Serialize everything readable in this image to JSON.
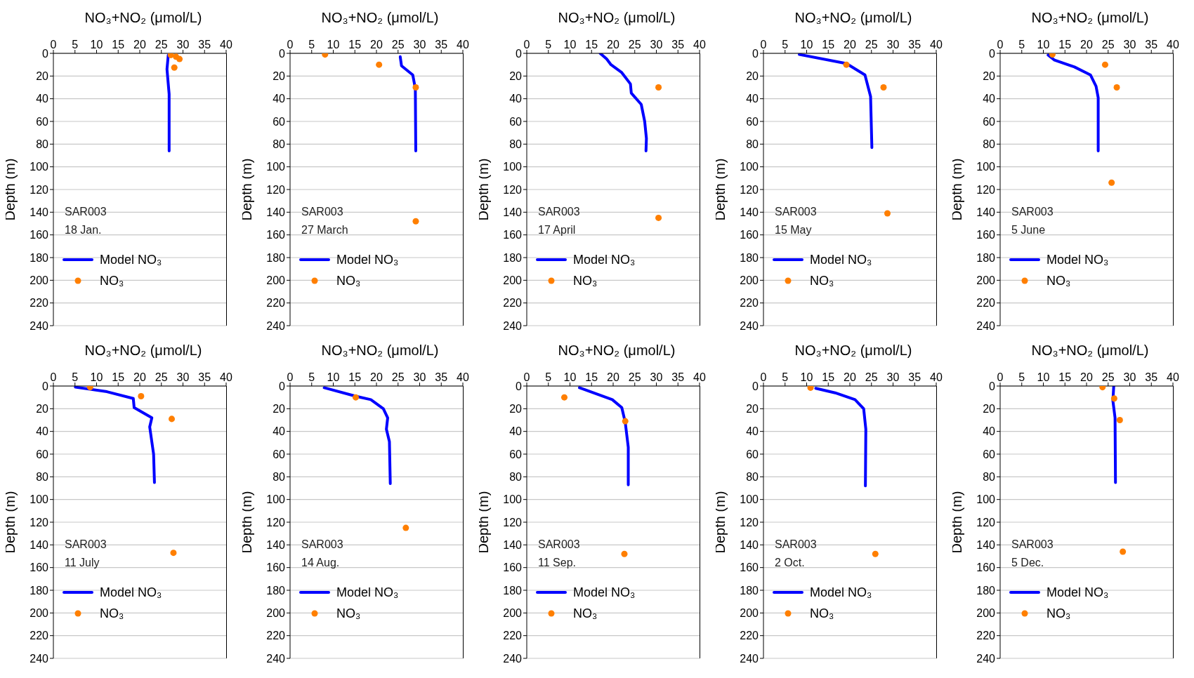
{
  "chart_data": [
    {
      "type": "line",
      "xlabel": "NO₃+NO₂ (μmol/L)",
      "ylabel": "Depth (m)",
      "xlim": [
        0,
        40
      ],
      "xticks": [
        0,
        5,
        10,
        15,
        20,
        25,
        30,
        35,
        40
      ],
      "ylim": [
        240,
        0
      ],
      "yticks": [
        0,
        20,
        40,
        60,
        80,
        100,
        120,
        140,
        160,
        180,
        200,
        220,
        240
      ],
      "grid": "y",
      "legend": "bottom left",
      "annotations": [
        "SAR003",
        "18 Jan."
      ],
      "series": [
        {
          "name": "Model NO₃",
          "type": "line",
          "marker": "none",
          "line_style": "solid",
          "color": "#0000ff",
          "x": [
            26.6,
            26.3,
            26.8,
            26.8
          ],
          "values": [
            1.5,
            14,
            36,
            86
          ]
        },
        {
          "name": "NO₃",
          "type": "scatter",
          "marker": "circle",
          "color": "#ff7f00",
          "x": [
            27.2,
            28.4,
            29.2,
            28
          ],
          "values": [
            1.5,
            3,
            5,
            12.5
          ]
        }
      ]
    },
    {
      "type": "line",
      "xlabel": "NO₃+NO₂ (μmol/L)",
      "ylabel": "Depth (m)",
      "xlim": [
        0,
        40
      ],
      "xticks": [
        0,
        5,
        10,
        15,
        20,
        25,
        30,
        35,
        40
      ],
      "ylim": [
        240,
        0
      ],
      "yticks": [
        0,
        20,
        40,
        60,
        80,
        100,
        120,
        140,
        160,
        180,
        200,
        220,
        240
      ],
      "grid": "y",
      "legend": "bottom left",
      "annotations": [
        "SAR003",
        "27 March"
      ],
      "series": [
        {
          "name": "Model NO₃",
          "type": "line",
          "marker": "none",
          "line_style": "solid",
          "color": "#0000ff",
          "x": [
            25.5,
            25.8,
            28.4,
            29,
            29.1
          ],
          "values": [
            3,
            11,
            19,
            31,
            86
          ]
        },
        {
          "name": "NO₃",
          "type": "scatter",
          "marker": "circle",
          "color": "#ff7f00",
          "x": [
            8.1,
            20.6,
            29.1,
            29.1
          ],
          "values": [
            1,
            10,
            30,
            148
          ]
        }
      ]
    },
    {
      "type": "line",
      "xlabel": "NO₃+NO₂ (μmol/L)",
      "ylabel": "Depth (m)",
      "xlim": [
        0,
        40
      ],
      "xticks": [
        0,
        5,
        10,
        15,
        20,
        25,
        30,
        35,
        40
      ],
      "ylim": [
        240,
        0
      ],
      "yticks": [
        0,
        20,
        40,
        60,
        80,
        100,
        120,
        140,
        160,
        180,
        200,
        220,
        240
      ],
      "grid": "y",
      "legend": "bottom left",
      "annotations": [
        "SAR003",
        "17 April"
      ],
      "series": [
        {
          "name": "Model NO₃",
          "type": "line",
          "marker": "none",
          "line_style": "solid",
          "color": "#0000ff",
          "x": [
            17,
            18.5,
            19.5,
            22,
            24,
            24.2,
            26.5,
            27.3,
            27.7,
            27.6
          ],
          "values": [
            0,
            5,
            10,
            17,
            27,
            35,
            45,
            60,
            75,
            86
          ]
        },
        {
          "name": "NO₃",
          "type": "scatter",
          "marker": "circle",
          "color": "#ff7f00",
          "x": [
            30.5,
            30.5
          ],
          "values": [
            30,
            145
          ]
        }
      ]
    },
    {
      "type": "line",
      "xlabel": "NO₃+NO₂ (μmol/L)",
      "ylabel": "Depth (m)",
      "xlim": [
        0,
        40
      ],
      "xticks": [
        0,
        5,
        10,
        15,
        20,
        25,
        30,
        35,
        40
      ],
      "ylim": [
        240,
        0
      ],
      "yticks": [
        0,
        20,
        40,
        60,
        80,
        100,
        120,
        140,
        160,
        180,
        200,
        220,
        240
      ],
      "grid": "y",
      "legend": "bottom left",
      "annotations": [
        "SAR003",
        "15 May"
      ],
      "series": [
        {
          "name": "Model NO₃",
          "type": "line",
          "marker": "none",
          "line_style": "solid",
          "color": "#0000ff",
          "x": [
            8.3,
            19.2,
            23.5,
            24.8,
            25.1
          ],
          "values": [
            1,
            9,
            19,
            38,
            83
          ]
        },
        {
          "name": "NO₃",
          "type": "scatter",
          "marker": "circle",
          "color": "#ff7f00",
          "x": [
            19.2,
            27.8,
            28.7
          ],
          "values": [
            10,
            30,
            141
          ]
        }
      ]
    },
    {
      "type": "line",
      "xlabel": "NO₃+NO₂ (μmol/L)",
      "ylabel": "Depth (m)",
      "xlim": [
        0,
        40
      ],
      "xticks": [
        0,
        5,
        10,
        15,
        20,
        25,
        30,
        35,
        40
      ],
      "ylim": [
        240,
        0
      ],
      "yticks": [
        0,
        20,
        40,
        60,
        80,
        100,
        120,
        140,
        160,
        180,
        200,
        220,
        240
      ],
      "grid": "y",
      "legend": "bottom left",
      "annotations": [
        "SAR003",
        "5 June"
      ],
      "series": [
        {
          "name": "Model NO₃",
          "type": "line",
          "marker": "none",
          "line_style": "solid",
          "color": "#0000ff",
          "x": [
            11.1,
            12.6,
            17.2,
            20.9,
            22.2,
            22.7,
            22.7
          ],
          "values": [
            1.5,
            6,
            12,
            19,
            29,
            39,
            86
          ]
        },
        {
          "name": "NO₃",
          "type": "scatter",
          "marker": "circle",
          "color": "#ff7f00",
          "x": [
            12.1,
            24.3,
            27,
            25.8
          ],
          "values": [
            1,
            10,
            30,
            114
          ]
        }
      ]
    },
    {
      "type": "line",
      "xlabel": "NO₃+NO₂ (μmol/L)",
      "ylabel": "Depth (m)",
      "xlim": [
        0,
        40
      ],
      "xticks": [
        0,
        5,
        10,
        15,
        20,
        25,
        30,
        35,
        40
      ],
      "ylim": [
        240,
        0
      ],
      "yticks": [
        0,
        20,
        40,
        60,
        80,
        100,
        120,
        140,
        160,
        180,
        200,
        220,
        240
      ],
      "grid": "y",
      "legend": "bottom left",
      "annotations": [
        "SAR003",
        "11 July"
      ],
      "series": [
        {
          "name": "Model NO₃",
          "type": "line",
          "marker": "none",
          "line_style": "solid",
          "color": "#0000ff",
          "x": [
            5.1,
            12.4,
            18.5,
            18.7,
            22.8,
            22.3,
            23.2,
            23.4
          ],
          "values": [
            1,
            5,
            11,
            19,
            28,
            36,
            60,
            85
          ]
        },
        {
          "name": "NO₃",
          "type": "scatter",
          "marker": "circle",
          "color": "#ff7f00",
          "x": [
            8.5,
            20.3,
            27.4,
            27.8
          ],
          "values": [
            1,
            9,
            29,
            147
          ]
        }
      ]
    },
    {
      "type": "line",
      "xlabel": "NO₃+NO₂ (μmol/L)",
      "ylabel": "Depth (m)",
      "xlim": [
        0,
        40
      ],
      "xticks": [
        0,
        5,
        10,
        15,
        20,
        25,
        30,
        35,
        40
      ],
      "ylim": [
        240,
        0
      ],
      "yticks": [
        0,
        20,
        40,
        60,
        80,
        100,
        120,
        140,
        160,
        180,
        200,
        220,
        240
      ],
      "grid": "y",
      "legend": "bottom left",
      "annotations": [
        "SAR003",
        "14 Aug."
      ],
      "series": [
        {
          "name": "Model NO₃",
          "type": "line",
          "marker": "none",
          "line_style": "solid",
          "color": "#0000ff",
          "x": [
            7.9,
            15.2,
            18.7,
            21.6,
            22.6,
            22.3,
            23,
            23.2
          ],
          "values": [
            1.5,
            9,
            12,
            20,
            28,
            38,
            49,
            86
          ]
        },
        {
          "name": "NO₃",
          "type": "scatter",
          "marker": "circle",
          "color": "#ff7f00",
          "x": [
            15.2,
            26.8
          ],
          "values": [
            10,
            125
          ]
        }
      ]
    },
    {
      "type": "line",
      "xlabel": "NO₃+NO₂ (μmol/L)",
      "ylabel": "Depth (m)",
      "xlim": [
        0,
        40
      ],
      "xticks": [
        0,
        5,
        10,
        15,
        20,
        25,
        30,
        35,
        40
      ],
      "ylim": [
        240,
        0
      ],
      "yticks": [
        0,
        20,
        40,
        60,
        80,
        100,
        120,
        140,
        160,
        180,
        200,
        220,
        240
      ],
      "grid": "y",
      "legend": "bottom left",
      "annotations": [
        "SAR003",
        "11 Sep."
      ],
      "series": [
        {
          "name": "Model NO₃",
          "type": "line",
          "marker": "none",
          "line_style": "solid",
          "color": "#0000ff",
          "x": [
            12.2,
            19.8,
            22,
            22.8,
            23.5,
            23.5
          ],
          "values": [
            1.5,
            12,
            19,
            32,
            54,
            87
          ]
        },
        {
          "name": "NO₃",
          "type": "scatter",
          "marker": "circle",
          "color": "#ff7f00",
          "x": [
            8.7,
            22.8,
            22.6
          ],
          "values": [
            10,
            31,
            148
          ]
        }
      ]
    },
    {
      "type": "line",
      "xlabel": "NO₃+NO₂ (μmol/L)",
      "ylabel": "Depth (m)",
      "xlim": [
        0,
        40
      ],
      "xticks": [
        0,
        5,
        10,
        15,
        20,
        25,
        30,
        35,
        40
      ],
      "ylim": [
        240,
        0
      ],
      "yticks": [
        0,
        20,
        40,
        60,
        80,
        100,
        120,
        140,
        160,
        180,
        200,
        220,
        240
      ],
      "grid": "y",
      "legend": "bottom left",
      "annotations": [
        "SAR003",
        "2 Oct."
      ],
      "series": [
        {
          "name": "Model NO₃",
          "type": "line",
          "marker": "none",
          "line_style": "solid",
          "color": "#0000ff",
          "x": [
            12.1,
            16.6,
            21.2,
            23.2,
            23.7,
            23.6
          ],
          "values": [
            2,
            6,
            12,
            20,
            38,
            88
          ]
        },
        {
          "name": "NO₃",
          "type": "scatter",
          "marker": "circle",
          "color": "#ff7f00",
          "x": [
            10.9,
            25.9
          ],
          "values": [
            1.5,
            148
          ]
        }
      ]
    },
    {
      "type": "line",
      "xlabel": "NO₃+NO₂ (μmol/L)",
      "ylabel": "Depth (m)",
      "xlim": [
        0,
        40
      ],
      "xticks": [
        0,
        5,
        10,
        15,
        20,
        25,
        30,
        35,
        40
      ],
      "ylim": [
        240,
        0
      ],
      "yticks": [
        0,
        20,
        40,
        60,
        80,
        100,
        120,
        140,
        160,
        180,
        200,
        220,
        240
      ],
      "grid": "y",
      "legend": "bottom left",
      "annotations": [
        "SAR003",
        "5 Dec."
      ],
      "series": [
        {
          "name": "Model NO₃",
          "type": "line",
          "marker": "none",
          "line_style": "solid",
          "color": "#0000ff",
          "x": [
            26.3,
            26.1,
            26.6,
            26.7
          ],
          "values": [
            0,
            13,
            28,
            85
          ]
        },
        {
          "name": "NO₃",
          "type": "scatter",
          "marker": "circle",
          "color": "#ff7f00",
          "x": [
            23.7,
            26.4,
            27.7,
            28.4
          ],
          "values": [
            1,
            11,
            30,
            146
          ]
        }
      ]
    }
  ]
}
